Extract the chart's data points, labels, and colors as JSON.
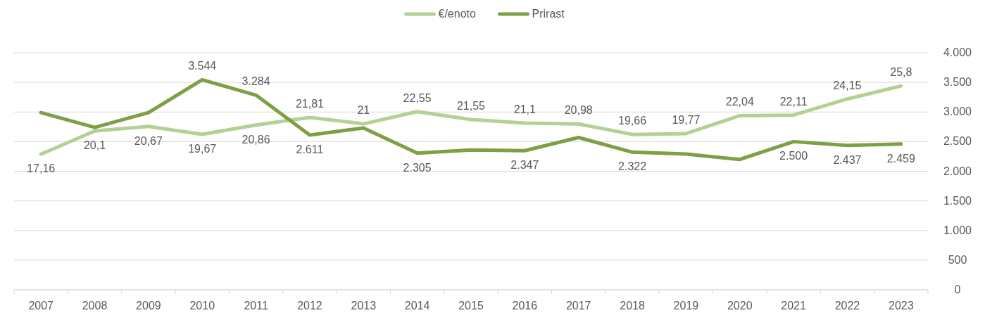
{
  "chart_data": {
    "type": "line",
    "categories": [
      "2007",
      "2008",
      "2009",
      "2010",
      "2011",
      "2012",
      "2013",
      "2014",
      "2015",
      "2016",
      "2017",
      "2018",
      "2019",
      "2020",
      "2021",
      "2022",
      "2023"
    ],
    "series": [
      {
        "name": "€/enoto",
        "color": "#b4d195",
        "axis": "y2",
        "values": [
          17.16,
          20.1,
          20.67,
          19.67,
          20.86,
          21.81,
          21,
          22.55,
          21.55,
          21.1,
          20.98,
          19.66,
          19.77,
          22.04,
          22.11,
          24.15,
          25.8
        ],
        "value_labels": [
          "17,16",
          "20,1",
          "20,67",
          "19,67",
          "20,86",
          "21,81",
          "21",
          "22,55",
          "21,55",
          "21,1",
          "20,98",
          "19,66",
          "19,77",
          "22,04",
          "22,11",
          "24,15",
          "25,8"
        ]
      },
      {
        "name": "Prirast",
        "color": "#7f9f45",
        "values": [
          2990,
          2740,
          2990,
          3544,
          3284,
          2611,
          2730,
          2305,
          2360,
          2347,
          2570,
          2322,
          2290,
          2200,
          2500,
          2437,
          2459
        ],
        "value_labels": [
          null,
          null,
          null,
          "3.544",
          "3.284",
          "2.611",
          null,
          "2.305",
          null,
          "2.347",
          null,
          "2.322",
          null,
          null,
          "2.500",
          "2.437",
          "2.459"
        ]
      }
    ],
    "ylim": [
      0,
      4000
    ],
    "yticks": [
      {
        "value": 0,
        "label": "0"
      },
      {
        "value": 500,
        "label": "500"
      },
      {
        "value": 1000,
        "label": "1.000"
      },
      {
        "value": 1500,
        "label": "1.500"
      },
      {
        "value": 2000,
        "label": "2.000"
      },
      {
        "value": 2500,
        "label": "2.500"
      },
      {
        "value": 3000,
        "label": "3.000"
      },
      {
        "value": 3500,
        "label": "3.500"
      },
      {
        "value": 4000,
        "label": "4.000"
      }
    ],
    "y2lim": [
      0,
      30
    ],
    "grid": "y",
    "legend": "top",
    "marker": "none",
    "line_style": "solid"
  }
}
